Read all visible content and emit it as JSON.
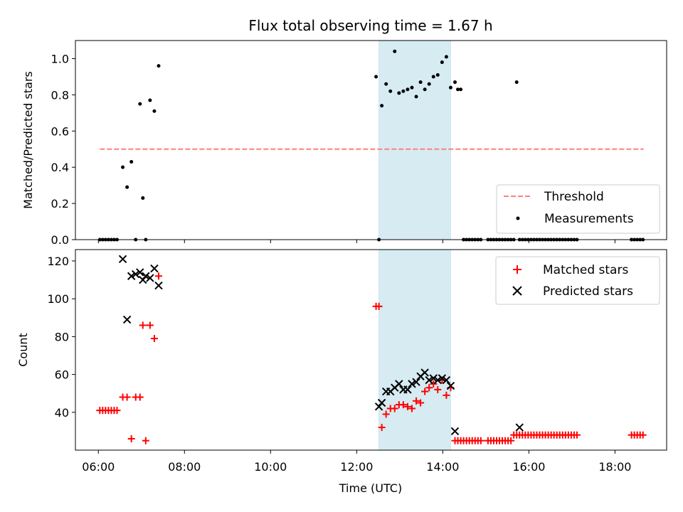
{
  "chart_data": [
    {
      "type": "scatter",
      "title": "Flux total observing time = 1.67 h",
      "xlabel": "",
      "ylabel": "Matched/Predicted stars",
      "xlim": [
        "05:28",
        "19:12"
      ],
      "ylim": [
        0,
        1.1
      ],
      "yticks": [
        0.0,
        0.2,
        0.4,
        0.6,
        0.8,
        1.0
      ],
      "ytick_labels": [
        "0.0",
        "0.2",
        "0.4",
        "0.6",
        "0.8",
        "1.0"
      ],
      "xticks": [
        "06:00",
        "08:00",
        "10:00",
        "12:00",
        "14:00",
        "16:00",
        "18:00"
      ],
      "shaded_span": {
        "start": "12:31",
        "end": "14:11",
        "color": "#add8e6"
      },
      "legend_position": "lower right",
      "legend_entries": [
        "Threshold",
        "Measurements"
      ],
      "series": [
        {
          "name": "Threshold",
          "kind": "dashed-line",
          "color": "#ff7f7f",
          "x": [
            "06:02",
            "18:40"
          ],
          "y": [
            0.5,
            0.5
          ]
        },
        {
          "name": "Measurements",
          "kind": "dots",
          "color": "#000000",
          "x": [
            "06:02",
            "06:06",
            "06:10",
            "06:14",
            "06:18",
            "06:22",
            "06:26",
            "06:34",
            "06:40",
            "06:46",
            "06:52",
            "06:58",
            "07:02",
            "07:06",
            "07:12",
            "07:18",
            "07:24",
            "12:27",
            "12:31",
            "12:35",
            "12:41",
            "12:47",
            "12:53",
            "12:59",
            "13:05",
            "13:11",
            "13:17",
            "13:23",
            "13:29",
            "13:35",
            "13:41",
            "13:47",
            "13:53",
            "13:59",
            "14:05",
            "14:11",
            "14:17",
            "14:21",
            "14:25",
            "14:29",
            "14:33",
            "14:37",
            "14:41",
            "14:45",
            "14:49",
            "14:53",
            "15:03",
            "15:07",
            "15:11",
            "15:15",
            "15:19",
            "15:23",
            "15:27",
            "15:31",
            "15:35",
            "15:39",
            "15:43",
            "15:47",
            "15:51",
            "15:55",
            "15:59",
            "16:03",
            "16:07",
            "16:11",
            "16:15",
            "16:19",
            "16:23",
            "16:27",
            "16:31",
            "16:35",
            "16:39",
            "16:43",
            "16:47",
            "16:51",
            "16:55",
            "16:59",
            "17:03",
            "17:07",
            "18:23",
            "18:27",
            "18:31",
            "18:35",
            "18:39"
          ],
          "y": [
            0,
            0,
            0,
            0,
            0,
            0,
            0,
            0.4,
            0.29,
            0.43,
            0,
            0.75,
            0.23,
            0,
            0.77,
            0.71,
            0.96,
            0.9,
            0,
            0.74,
            0.86,
            0.82,
            1.04,
            0.81,
            0.82,
            0.83,
            0.84,
            0.79,
            0.87,
            0.83,
            0.86,
            0.9,
            0.91,
            0.98,
            1.01,
            0.84,
            0.87,
            0.83,
            0.83,
            0,
            0,
            0,
            0,
            0,
            0,
            0,
            0,
            0,
            0,
            0,
            0,
            0,
            0,
            0,
            0,
            0,
            0.87,
            0,
            0,
            0,
            0,
            0,
            0,
            0,
            0,
            0,
            0,
            0,
            0,
            0,
            0,
            0,
            0,
            0,
            0,
            0,
            0,
            0,
            0,
            0,
            0,
            0,
            0
          ]
        }
      ]
    },
    {
      "type": "scatter",
      "title": "",
      "xlabel": "Time (UTC)",
      "ylabel": "Count",
      "xlim": [
        "05:28",
        "19:12"
      ],
      "ylim": [
        20,
        126
      ],
      "yticks": [
        40,
        60,
        80,
        100,
        120
      ],
      "ytick_labels": [
        "40",
        "60",
        "80",
        "100",
        "120"
      ],
      "xticks": [
        "06:00",
        "08:00",
        "10:00",
        "12:00",
        "14:00",
        "16:00",
        "18:00"
      ],
      "xtick_labels": [
        "06:00",
        "08:00",
        "10:00",
        "12:00",
        "14:00",
        "16:00",
        "18:00"
      ],
      "shaded_span": {
        "start": "12:31",
        "end": "14:11",
        "color": "#add8e6"
      },
      "legend_position": "upper right",
      "legend_entries": [
        "Matched stars",
        "Predicted stars"
      ],
      "series": [
        {
          "name": "Matched stars",
          "kind": "plus",
          "color": "#ff0000",
          "x": [
            "06:02",
            "06:06",
            "06:10",
            "06:14",
            "06:18",
            "06:22",
            "06:26",
            "06:34",
            "06:40",
            "06:46",
            "06:52",
            "06:58",
            "07:02",
            "07:06",
            "07:12",
            "07:18",
            "07:24",
            "12:27",
            "12:31",
            "12:35",
            "12:41",
            "12:47",
            "12:53",
            "12:59",
            "13:05",
            "13:11",
            "13:17",
            "13:23",
            "13:29",
            "13:35",
            "13:41",
            "13:47",
            "13:53",
            "13:59",
            "14:05",
            "14:11",
            "14:17",
            "14:21",
            "14:25",
            "14:29",
            "14:33",
            "14:37",
            "14:41",
            "14:45",
            "14:49",
            "14:53",
            "15:03",
            "15:07",
            "15:11",
            "15:15",
            "15:19",
            "15:23",
            "15:27",
            "15:31",
            "15:35",
            "15:39",
            "15:43",
            "15:47",
            "15:51",
            "15:55",
            "15:59",
            "16:03",
            "16:07",
            "16:11",
            "16:15",
            "16:19",
            "16:23",
            "16:27",
            "16:31",
            "16:35",
            "16:39",
            "16:43",
            "16:47",
            "16:51",
            "16:55",
            "16:59",
            "17:03",
            "17:07",
            "18:23",
            "18:27",
            "18:31",
            "18:35",
            "18:39"
          ],
          "y": [
            41,
            41,
            41,
            41,
            41,
            41,
            41,
            48,
            48,
            26,
            48,
            48,
            86,
            25,
            86,
            79,
            112,
            96,
            96,
            32,
            39,
            42,
            42,
            44,
            44,
            43,
            42,
            46,
            45,
            51,
            53,
            55,
            52,
            57,
            49,
            53,
            25,
            25,
            25,
            25,
            25,
            25,
            25,
            25,
            25,
            25,
            25,
            25,
            25,
            25,
            25,
            25,
            25,
            25,
            25,
            28,
            28,
            28,
            28,
            28,
            28,
            28,
            28,
            28,
            28,
            28,
            28,
            28,
            28,
            28,
            28,
            28,
            28,
            28,
            28,
            28,
            28,
            28,
            28,
            28,
            28,
            28,
            28
          ]
        },
        {
          "name": "Predicted stars",
          "kind": "x",
          "color": "#000000",
          "x": [
            "06:34",
            "06:40",
            "06:46",
            "06:52",
            "06:58",
            "07:02",
            "07:06",
            "07:12",
            "07:18",
            "07:24",
            "12:31",
            "12:35",
            "12:41",
            "12:47",
            "12:53",
            "12:59",
            "13:05",
            "13:11",
            "13:17",
            "13:23",
            "13:29",
            "13:35",
            "13:41",
            "13:47",
            "13:53",
            "13:59",
            "14:05",
            "14:11",
            "14:17",
            "15:47"
          ],
          "y": [
            121,
            89,
            112,
            113,
            114,
            110,
            112,
            111,
            116,
            107,
            43,
            45,
            51,
            51,
            53,
            55,
            52,
            52,
            55,
            56,
            59,
            61,
            57,
            58,
            57,
            58,
            57,
            54,
            30,
            32
          ]
        }
      ]
    }
  ]
}
